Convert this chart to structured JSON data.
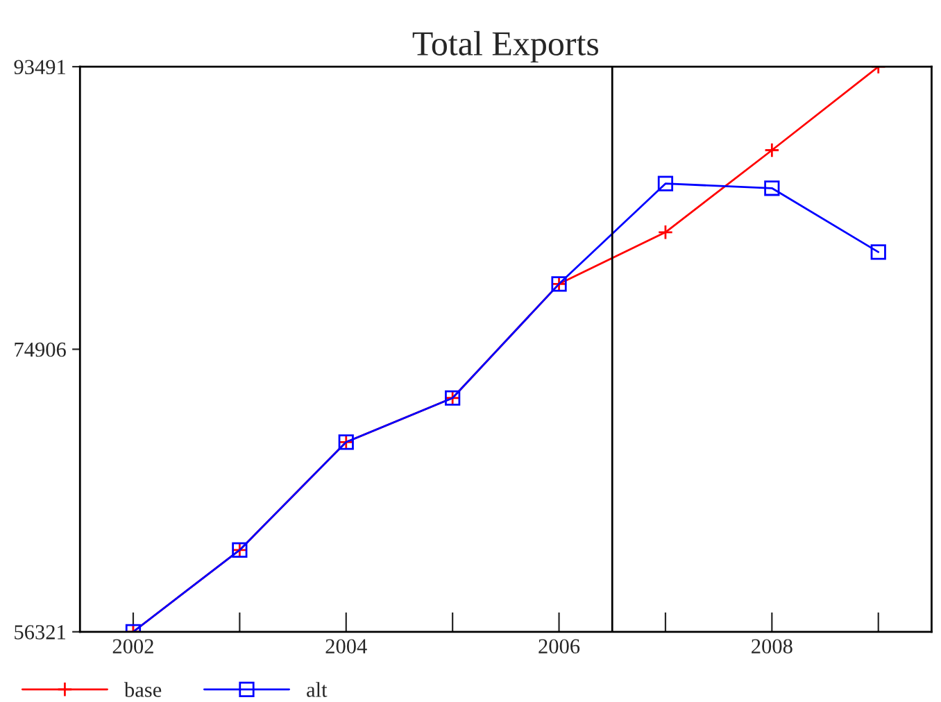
{
  "chart_data": {
    "type": "line",
    "title": "Total Exports",
    "x": [
      2002,
      2003,
      2004,
      2005,
      2006,
      2007,
      2008,
      2009
    ],
    "series": [
      {
        "name": "base",
        "color": "#ff0000",
        "marker": "cross",
        "values": [
          56321,
          61700,
          68800,
          71700,
          79200,
          82600,
          88000,
          93491
        ]
      },
      {
        "name": "alt",
        "color": "#0000ff",
        "marker": "square",
        "values": [
          56321,
          61700,
          68800,
          71700,
          79200,
          85800,
          85500,
          81300
        ]
      }
    ],
    "xlim": [
      2001.5,
      2009.5
    ],
    "xticks": [
      2002,
      {
        "value": 2003,
        "label": null
      },
      2004,
      {
        "value": 2005,
        "label": null
      },
      2006,
      {
        "value": 2007,
        "label": null
      },
      2008,
      {
        "value": 2009,
        "label": null
      }
    ],
    "ylim": [
      56321,
      93491
    ],
    "yticks": [
      56321,
      74906,
      93491
    ],
    "ref_lines": [
      {
        "axis": "x",
        "value": 2006.5,
        "color": "#000000"
      }
    ],
    "grid": false,
    "legend": "bottom",
    "line_style": "solid"
  }
}
